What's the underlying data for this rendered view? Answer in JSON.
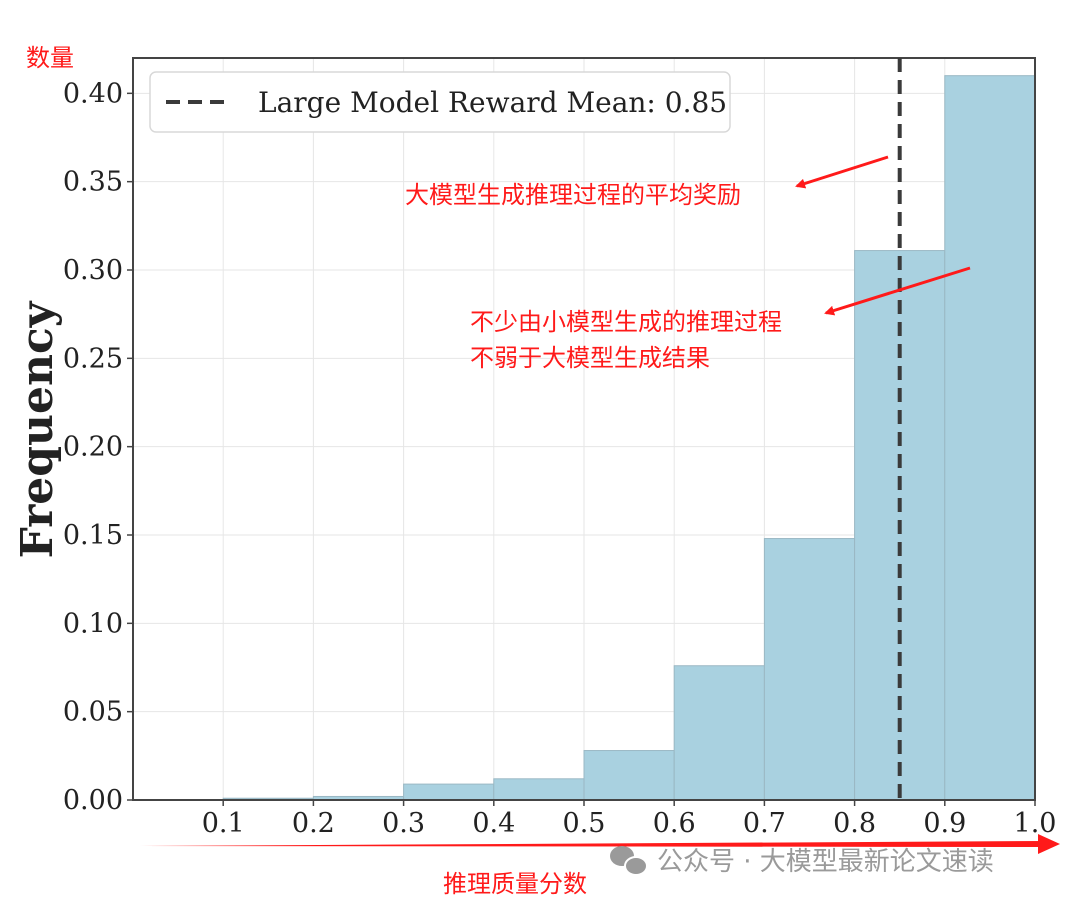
{
  "chart_data": {
    "type": "bar",
    "title": "",
    "xlabel": "推理质量分数",
    "ylabel": "Frequency",
    "y_unit_label": "数量",
    "xlim": [
      0.0,
      1.0
    ],
    "ylim": [
      0.0,
      0.42
    ],
    "x_ticks": [
      "0.1",
      "0.2",
      "0.3",
      "0.4",
      "0.5",
      "0.6",
      "0.7",
      "0.8",
      "0.9",
      "1.0"
    ],
    "x_tick_values": [
      0.1,
      0.2,
      0.3,
      0.4,
      0.5,
      0.6,
      0.7,
      0.8,
      0.9,
      1.0
    ],
    "y_ticks": [
      "0.00",
      "0.05",
      "0.10",
      "0.15",
      "0.20",
      "0.25",
      "0.30",
      "0.35",
      "0.40"
    ],
    "y_tick_values": [
      0.0,
      0.05,
      0.1,
      0.15,
      0.2,
      0.25,
      0.3,
      0.35,
      0.4
    ],
    "bins": [
      {
        "start": 0.1,
        "end": 0.2,
        "value": 0.001
      },
      {
        "start": 0.2,
        "end": 0.3,
        "value": 0.002
      },
      {
        "start": 0.3,
        "end": 0.4,
        "value": 0.009
      },
      {
        "start": 0.4,
        "end": 0.5,
        "value": 0.012
      },
      {
        "start": 0.5,
        "end": 0.6,
        "value": 0.028
      },
      {
        "start": 0.6,
        "end": 0.7,
        "value": 0.076
      },
      {
        "start": 0.7,
        "end": 0.8,
        "value": 0.148
      },
      {
        "start": 0.8,
        "end": 0.9,
        "value": 0.311
      },
      {
        "start": 0.9,
        "end": 1.0,
        "value": 0.41
      }
    ],
    "mean_line": {
      "x": 0.85,
      "label": "Large Model Reward Mean: 0.85"
    },
    "grid": true,
    "legend_position": "top-left",
    "bar_color": "#a9d1e0",
    "bar_edge_color": "#9ab8c4",
    "annotations": [
      {
        "lines": [
          "大模型生成推理过程的平均奖励"
        ]
      },
      {
        "lines": [
          "不少由小模型生成的推理过程",
          "不弱于大模型生成结果"
        ]
      }
    ]
  },
  "colors": {
    "annotation": "#ff1a1a",
    "mean_line": "#3a3a3a",
    "watermark": "#9a9a9a"
  },
  "watermark": {
    "text": "公众号 · 大模型最新论文速读",
    "icon": "wechat-icon"
  }
}
